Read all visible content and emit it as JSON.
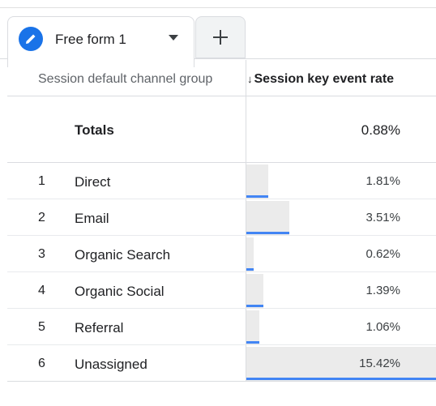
{
  "tab": {
    "label": "Free form 1",
    "icon": "pencil-icon",
    "add_icon": "plus-icon",
    "accent": "#1a73e8"
  },
  "table": {
    "dimension_header": "Session default channel group",
    "metric_header": "Session key event rate",
    "sort_indicator": "↓",
    "totals_label": "Totals",
    "totals_value": "0.88%",
    "bar_color": "#4285f4",
    "rows": [
      {
        "index": "1",
        "label": "Direct",
        "value": "1.81%",
        "fraction": 0.1174
      },
      {
        "index": "2",
        "label": "Email",
        "value": "3.51%",
        "fraction": 0.2276
      },
      {
        "index": "3",
        "label": "Organic Search",
        "value": "0.62%",
        "fraction": 0.0402
      },
      {
        "index": "4",
        "label": "Organic Social",
        "value": "1.39%",
        "fraction": 0.0901
      },
      {
        "index": "5",
        "label": "Referral",
        "value": "1.06%",
        "fraction": 0.0687
      },
      {
        "index": "6",
        "label": "Unassigned",
        "value": "15.42%",
        "fraction": 1.0
      }
    ]
  }
}
